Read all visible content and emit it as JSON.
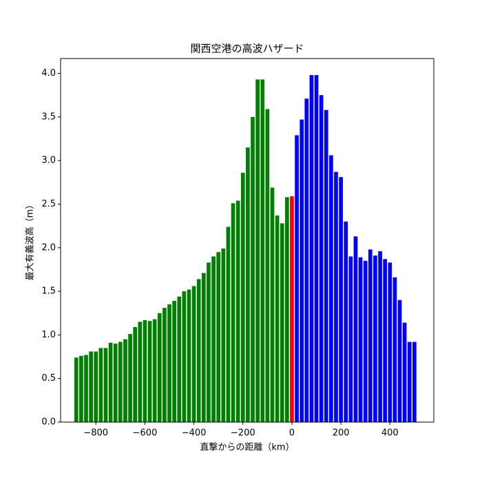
{
  "chart_data": {
    "type": "bar",
    "title": "関西空港の高波ハザード",
    "xlabel": "直撃からの距離（km）",
    "ylabel": "最大有義波高（m）",
    "bar_width": 16,
    "series": [
      {
        "color": "green",
        "x": [
          -880,
          -860,
          -840,
          -820,
          -800,
          -780,
          -760,
          -740,
          -720,
          -700,
          -680,
          -660,
          -640,
          -620,
          -600,
          -580,
          -560,
          -540,
          -520,
          -500,
          -480,
          -460,
          -440,
          -420,
          -400,
          -380,
          -360,
          -340,
          -320,
          -300,
          -280,
          -260,
          -240,
          -220,
          -200,
          -180,
          -160,
          -140,
          -120,
          -100,
          -80,
          -60,
          -40,
          -20
        ],
        "values": [
          0.74,
          0.76,
          0.77,
          0.81,
          0.81,
          0.85,
          0.85,
          0.91,
          0.9,
          0.92,
          0.95,
          1.01,
          1.09,
          1.15,
          1.17,
          1.16,
          1.18,
          1.25,
          1.31,
          1.35,
          1.39,
          1.44,
          1.5,
          1.52,
          1.56,
          1.64,
          1.71,
          1.83,
          1.9,
          1.95,
          1.99,
          2.24,
          2.51,
          2.54,
          2.86,
          3.15,
          3.5,
          3.93,
          3.93,
          3.59,
          2.69,
          2.37,
          2.28,
          2.58
        ]
      },
      {
        "color": "red",
        "x": [
          0
        ],
        "values": [
          2.59
        ]
      },
      {
        "color": "blue",
        "x": [
          20,
          40,
          60,
          80,
          100,
          120,
          140,
          160,
          180,
          200,
          220,
          240,
          260,
          280,
          300,
          320,
          340,
          360,
          380,
          400,
          420,
          440,
          460,
          480,
          500
        ],
        "values": [
          3.29,
          3.47,
          3.71,
          3.98,
          3.98,
          3.75,
          3.58,
          3.06,
          2.87,
          2.81,
          2.3,
          1.9,
          2.13,
          1.89,
          1.85,
          1.98,
          1.91,
          1.96,
          1.87,
          1.83,
          1.66,
          1.4,
          1.14,
          0.92,
          0.92
        ]
      }
    ],
    "xlim": [
      -944,
      579
    ],
    "ylim": [
      0,
      4.17
    ],
    "xticks": [
      {
        "value": -800,
        "label": "−800"
      },
      {
        "value": -600,
        "label": "−600"
      },
      {
        "value": -400,
        "label": "−400"
      },
      {
        "value": -200,
        "label": "−200"
      },
      0,
      200,
      400
    ],
    "yticks": [
      {
        "value": 0,
        "label": "0.0"
      },
      {
        "value": 0.5,
        "label": "0.5"
      },
      {
        "value": 1,
        "label": "1.0"
      },
      {
        "value": 1.5,
        "label": "1.5"
      },
      {
        "value": 2,
        "label": "2.0"
      },
      {
        "value": 2.5,
        "label": "2.5"
      },
      {
        "value": 3,
        "label": "3.0"
      },
      {
        "value": 3.5,
        "label": "3.5"
      },
      {
        "value": 4,
        "label": "4.0"
      }
    ]
  }
}
